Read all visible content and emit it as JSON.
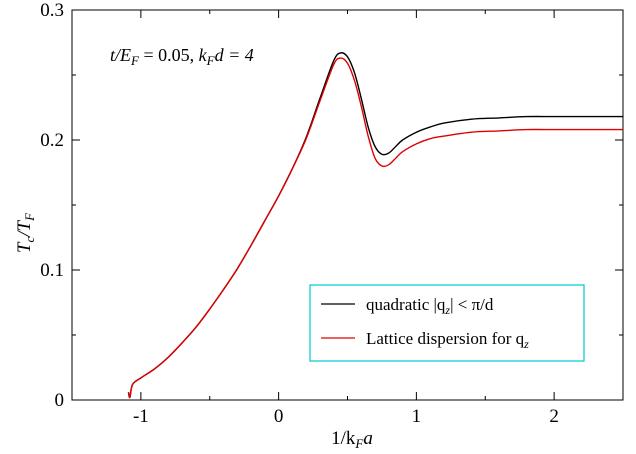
{
  "chart_data": {
    "type": "line",
    "xlabel": {
      "main": "1/k",
      "sub": "F",
      "tail": "a"
    },
    "ylabel": {
      "main": "T",
      "sub1": "c",
      "mid": "/T",
      "sub2": "F"
    },
    "xlim": [
      -1.5,
      2.5
    ],
    "ylim": [
      0,
      0.3
    ],
    "x_ticks": [
      -1,
      0,
      1,
      2
    ],
    "y_ticks": [
      0,
      0.1,
      0.2,
      0.3
    ],
    "x_tick_labels": [
      "-1",
      "0",
      "1",
      "2"
    ],
    "y_tick_labels": [
      "0",
      "0.1",
      "0.2",
      "0.3"
    ],
    "grid": false,
    "legend_position": "bottom-right",
    "legend_border_color": "#00c8d0",
    "annotation": {
      "t": "t/E",
      "t_sub": "F",
      "t_val": " = 0.05,  ",
      "k": "k",
      "k_sub": "F",
      "k_val": "d = 4"
    },
    "series": [
      {
        "name": "quadratic |q_z| < π/d",
        "legend_parts": {
          "a": "quadratic |q",
          "sub": "z",
          "b": "| < π/d"
        },
        "color": "#000000",
        "x": [
          -1.09,
          -1.08,
          -1.06,
          -1.0,
          -0.9,
          -0.8,
          -0.7,
          -0.6,
          -0.5,
          -0.4,
          -0.3,
          -0.2,
          -0.1,
          0.0,
          0.1,
          0.2,
          0.3,
          0.4,
          0.45,
          0.5,
          0.55,
          0.6,
          0.65,
          0.7,
          0.75,
          0.8,
          0.85,
          0.9,
          1.0,
          1.1,
          1.2,
          1.4,
          1.6,
          1.8,
          2.0,
          2.2,
          2.5
        ],
        "y": [
          0.006,
          0.002,
          0.012,
          0.017,
          0.024,
          0.033,
          0.044,
          0.056,
          0.07,
          0.085,
          0.101,
          0.119,
          0.138,
          0.157,
          0.178,
          0.202,
          0.232,
          0.261,
          0.267,
          0.264,
          0.252,
          0.232,
          0.21,
          0.195,
          0.189,
          0.19,
          0.195,
          0.2,
          0.206,
          0.21,
          0.213,
          0.216,
          0.217,
          0.218,
          0.218,
          0.218,
          0.218
        ]
      },
      {
        "name": "Lattice dispersion for q_z",
        "legend_parts": {
          "a": "Lattice dispersion for q",
          "sub": "z",
          "b": ""
        },
        "color": "#e00000",
        "x": [
          -1.09,
          -1.08,
          -1.06,
          -1.0,
          -0.9,
          -0.8,
          -0.7,
          -0.6,
          -0.5,
          -0.4,
          -0.3,
          -0.2,
          -0.1,
          0.0,
          0.1,
          0.2,
          0.3,
          0.4,
          0.45,
          0.5,
          0.55,
          0.6,
          0.65,
          0.7,
          0.75,
          0.8,
          0.85,
          0.9,
          1.0,
          1.1,
          1.2,
          1.4,
          1.6,
          1.8,
          2.0,
          2.2,
          2.5
        ],
        "y": [
          0.006,
          0.002,
          0.012,
          0.017,
          0.024,
          0.033,
          0.044,
          0.056,
          0.07,
          0.085,
          0.101,
          0.119,
          0.138,
          0.157,
          0.178,
          0.201,
          0.23,
          0.258,
          0.263,
          0.259,
          0.246,
          0.226,
          0.203,
          0.186,
          0.18,
          0.181,
          0.186,
          0.191,
          0.197,
          0.201,
          0.203,
          0.206,
          0.207,
          0.208,
          0.208,
          0.208,
          0.208
        ]
      }
    ]
  }
}
